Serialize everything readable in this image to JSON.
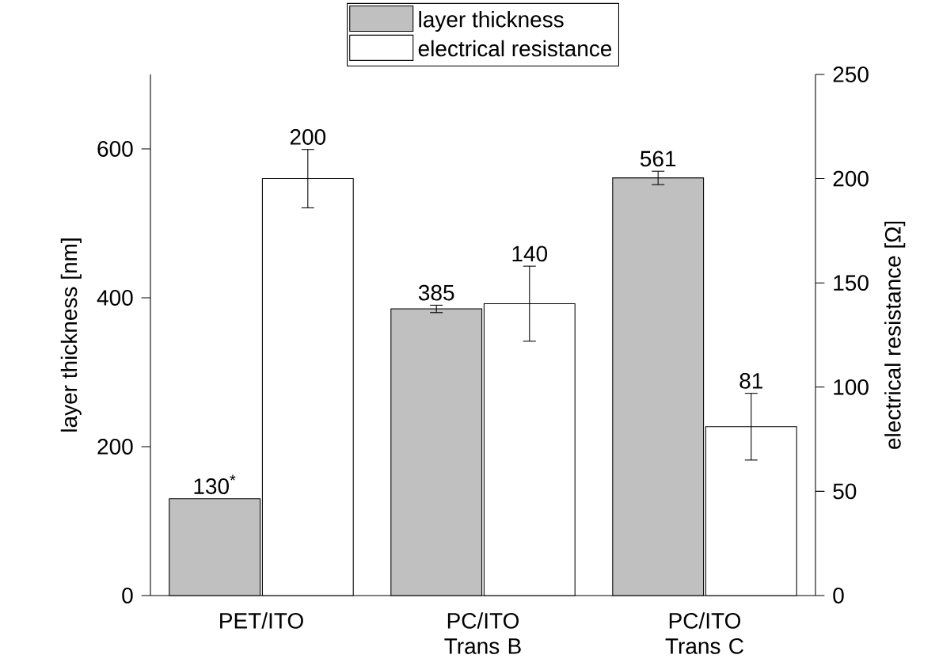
{
  "chart_data": {
    "type": "bar",
    "categories": [
      "PET/ITO",
      "PC/ITO Trans B",
      "PC/ITO Trans C"
    ],
    "ylabel": "layer thickness [nm]",
    "y2label": "electrical resistance [Ω]",
    "ylim": [
      0,
      700
    ],
    "yticks": [
      0,
      200,
      400,
      600
    ],
    "y2lim": [
      0,
      250
    ],
    "y2ticks": [
      0,
      50,
      100,
      150,
      200,
      250
    ],
    "legend": "top",
    "series": [
      {
        "name": "layer thickness",
        "color": "#c0c0c0",
        "values": [
          130,
          385,
          561
        ],
        "errors": [
          null,
          5,
          9
        ],
        "value_labels": [
          "130$^{*}$",
          "385",
          "561"
        ]
      },
      {
        "name": "electrical resistance",
        "color": "#ffffff",
        "axis": "y2",
        "values": [
          200,
          140,
          81
        ],
        "errors": [
          14,
          18,
          16
        ],
        "value_labels": [
          "200",
          "140",
          "81"
        ]
      }
    ]
  }
}
